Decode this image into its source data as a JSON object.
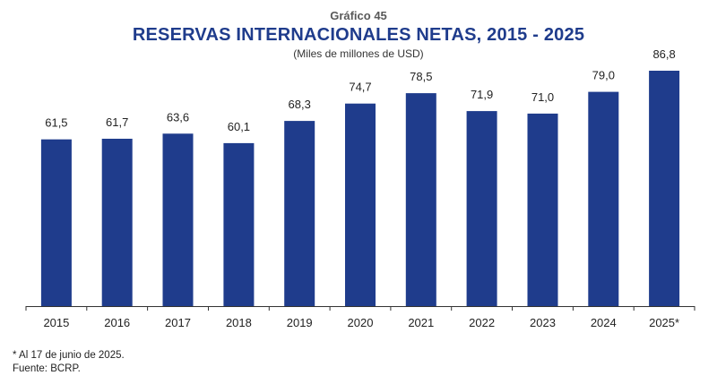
{
  "header": {
    "kicker": "Gráfico 45",
    "title": "RESERVAS INTERNACIONALES NETAS, 2015 - 2025",
    "subtitle": "(Miles de millones de USD)"
  },
  "notes": {
    "footnote": "* Al 17 de junio de 2025.",
    "source": "Fuente: BCRP."
  },
  "colors": {
    "bar": "#1f3c8c",
    "title": "#1f3c8c",
    "text": "#222222"
  },
  "chart_data": {
    "type": "bar",
    "categories": [
      "2015",
      "2016",
      "2017",
      "2018",
      "2019",
      "2020",
      "2021",
      "2022",
      "2023",
      "2024",
      "2025*"
    ],
    "values": [
      61.5,
      61.7,
      63.6,
      60.1,
      68.3,
      74.7,
      78.5,
      71.9,
      71.0,
      79.0,
      86.8
    ],
    "value_labels": [
      "61,5",
      "61,7",
      "63,6",
      "60,1",
      "68,3",
      "74,7",
      "78,5",
      "71,9",
      "71,0",
      "79,0",
      "86,8"
    ],
    "title": "RESERVAS INTERNACIONALES NETAS, 2015 - 2025",
    "xlabel": "",
    "ylabel": "",
    "ylim": [
      0,
      100
    ],
    "grid": false,
    "legend": "none"
  }
}
